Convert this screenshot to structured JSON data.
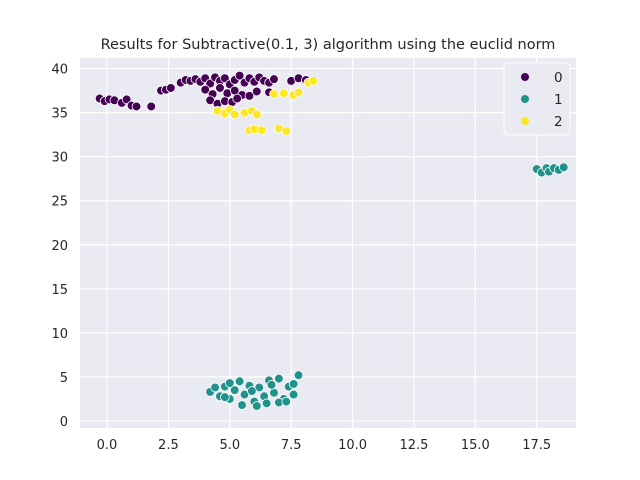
{
  "chart_data": {
    "type": "scatter",
    "title": "Results for Subtractive(0.1, 3) algorithm using the euclid norm",
    "xlabel": "",
    "ylabel": "",
    "xlim": [
      -1.1,
      19.1
    ],
    "ylim": [
      -0.8,
      41.2
    ],
    "xticks": [
      0.0,
      2.5,
      5.0,
      7.5,
      10.0,
      12.5,
      15.0,
      17.5
    ],
    "xtick_labels": [
      "0.0",
      "2.5",
      "5.0",
      "7.5",
      "10.0",
      "12.5",
      "15.0",
      "17.5"
    ],
    "yticks": [
      0,
      5,
      10,
      15,
      20,
      25,
      30,
      35,
      40
    ],
    "ytick_labels": [
      "0",
      "5",
      "10",
      "15",
      "20",
      "25",
      "30",
      "35",
      "40"
    ],
    "grid": true,
    "legend": "top-right",
    "series": [
      {
        "name": "0",
        "color": "#440154",
        "points": [
          [
            -0.3,
            36.6
          ],
          [
            -0.1,
            36.3
          ],
          [
            0.1,
            36.5
          ],
          [
            0.3,
            36.4
          ],
          [
            0.6,
            36.1
          ],
          [
            0.8,
            36.5
          ],
          [
            1.0,
            35.8
          ],
          [
            1.2,
            35.7
          ],
          [
            1.8,
            35.7
          ],
          [
            2.2,
            37.5
          ],
          [
            2.4,
            37.6
          ],
          [
            2.6,
            37.8
          ],
          [
            3.0,
            38.4
          ],
          [
            3.2,
            38.7
          ],
          [
            3.4,
            38.6
          ],
          [
            3.6,
            38.8
          ],
          [
            3.8,
            38.5
          ],
          [
            4.0,
            38.9
          ],
          [
            4.2,
            38.3
          ],
          [
            4.4,
            39.0
          ],
          [
            4.6,
            38.6
          ],
          [
            4.8,
            38.9
          ],
          [
            5.0,
            38.2
          ],
          [
            5.2,
            38.7
          ],
          [
            5.4,
            39.2
          ],
          [
            5.6,
            38.4
          ],
          [
            5.8,
            38.9
          ],
          [
            6.0,
            38.5
          ],
          [
            6.2,
            39.0
          ],
          [
            6.4,
            38.6
          ],
          [
            6.6,
            38.4
          ],
          [
            6.8,
            38.8
          ],
          [
            4.0,
            37.6
          ],
          [
            4.3,
            37.1
          ],
          [
            4.6,
            37.8
          ],
          [
            4.9,
            37.2
          ],
          [
            5.2,
            37.5
          ],
          [
            5.5,
            37.0
          ],
          [
            5.8,
            36.9
          ],
          [
            6.1,
            37.4
          ],
          [
            4.2,
            36.4
          ],
          [
            4.5,
            36.0
          ],
          [
            4.8,
            36.3
          ],
          [
            5.1,
            36.2
          ],
          [
            5.3,
            36.6
          ],
          [
            6.6,
            37.3
          ],
          [
            7.5,
            38.6
          ],
          [
            7.8,
            38.9
          ],
          [
            8.1,
            38.7
          ]
        ]
      },
      {
        "name": "1",
        "color": "#21918c",
        "points": [
          [
            17.5,
            28.6
          ],
          [
            17.7,
            28.2
          ],
          [
            17.9,
            28.7
          ],
          [
            18.0,
            28.3
          ],
          [
            18.2,
            28.7
          ],
          [
            18.4,
            28.5
          ],
          [
            18.6,
            28.8
          ],
          [
            4.2,
            3.3
          ],
          [
            4.4,
            3.8
          ],
          [
            4.6,
            2.8
          ],
          [
            4.8,
            3.9
          ],
          [
            5.0,
            2.5
          ],
          [
            5.2,
            3.5
          ],
          [
            5.4,
            4.5
          ],
          [
            5.6,
            3.0
          ],
          [
            5.8,
            4.0
          ],
          [
            6.0,
            2.2
          ],
          [
            6.2,
            3.8
          ],
          [
            6.4,
            2.8
          ],
          [
            6.6,
            4.6
          ],
          [
            6.8,
            3.2
          ],
          [
            7.0,
            4.8
          ],
          [
            7.2,
            2.5
          ],
          [
            7.4,
            3.9
          ],
          [
            7.6,
            4.2
          ],
          [
            7.8,
            5.2
          ],
          [
            5.0,
            4.3
          ],
          [
            5.5,
            1.8
          ],
          [
            6.1,
            1.7
          ],
          [
            6.5,
            2.0
          ],
          [
            7.0,
            2.1
          ],
          [
            7.3,
            2.2
          ],
          [
            7.6,
            3.0
          ],
          [
            4.8,
            2.7
          ],
          [
            5.9,
            3.4
          ],
          [
            6.7,
            4.1
          ]
        ]
      },
      {
        "name": "2",
        "color": "#fde725",
        "points": [
          [
            4.5,
            35.2
          ],
          [
            4.8,
            34.9
          ],
          [
            5.0,
            35.3
          ],
          [
            5.2,
            34.8
          ],
          [
            5.6,
            35.0
          ],
          [
            5.9,
            35.2
          ],
          [
            6.1,
            34.8
          ],
          [
            5.8,
            33.0
          ],
          [
            6.0,
            33.1
          ],
          [
            6.3,
            33.0
          ],
          [
            7.0,
            33.2
          ],
          [
            7.3,
            32.9
          ],
          [
            6.8,
            37.1
          ],
          [
            7.2,
            37.2
          ],
          [
            7.6,
            37.0
          ],
          [
            7.8,
            37.3
          ],
          [
            8.2,
            38.4
          ],
          [
            8.4,
            38.6
          ]
        ]
      }
    ]
  }
}
